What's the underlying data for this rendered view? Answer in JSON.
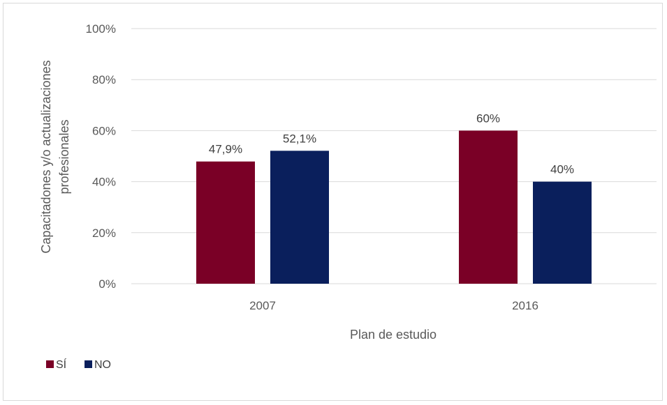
{
  "chart_data": {
    "type": "bar",
    "categories": [
      "2007",
      "2016"
    ],
    "series": [
      {
        "name": "SÍ",
        "color": "#7a0026",
        "values": [
          47.9,
          60
        ],
        "labels": [
          "47,9%",
          "60%"
        ]
      },
      {
        "name": "NO",
        "color": "#0a1f5c",
        "values": [
          52.1,
          40
        ],
        "labels": [
          "52,1%",
          "40%"
        ]
      }
    ],
    "xlabel": "Plan de estudio",
    "ylabel_lines": [
      "Capacitadones y/o actualizaciones",
      "profesionales"
    ],
    "ylim": [
      0,
      100
    ],
    "yticks": [
      0,
      20,
      40,
      60,
      80,
      100
    ],
    "ytick_labels": [
      "0%",
      "20%",
      "40%",
      "60%",
      "80%",
      "100%"
    ],
    "grid": true,
    "gridline_color": "#d9d9d9",
    "legend_position": "bottom-left"
  }
}
